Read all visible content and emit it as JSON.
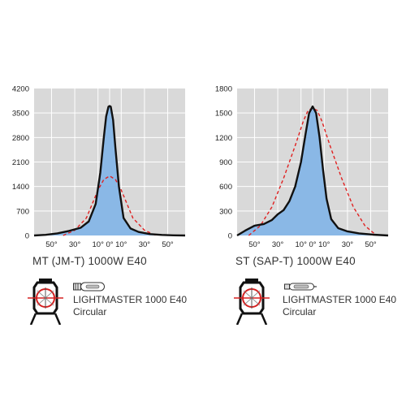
{
  "chart_data": [
    {
      "type": "line",
      "title": "MT (JM-T) 1000W E40",
      "yticks": [
        "4200",
        "3500",
        "2800",
        "2100",
        "1400",
        "700",
        "0"
      ],
      "ylim": [
        0,
        4200
      ],
      "xticks": [
        "50°",
        "30°",
        "10°",
        "0°",
        "10°",
        "30°",
        "50°"
      ],
      "xtick_angles": [
        -50,
        -30,
        -10,
        0,
        10,
        30,
        50
      ],
      "xlim": [
        -65,
        65
      ],
      "grid": true,
      "series": [
        {
          "style": "solid-black-filled-blue",
          "x": [
            -65,
            -55,
            -45,
            -35,
            -25,
            -18,
            -12,
            -8,
            -5,
            -3,
            -1,
            0,
            1,
            3,
            5,
            8,
            12,
            18,
            25,
            35,
            45,
            55,
            65
          ],
          "y": [
            0,
            20,
            60,
            130,
            220,
            400,
            900,
            1800,
            2800,
            3400,
            3680,
            3700,
            3680,
            3300,
            2500,
            1400,
            500,
            200,
            100,
            40,
            15,
            5,
            0
          ]
        },
        {
          "style": "dashed-red",
          "x": [
            -40,
            -30,
            -20,
            -15,
            -10,
            -5,
            0,
            5,
            10,
            15,
            20,
            30,
            40
          ],
          "y": [
            0,
            150,
            500,
            900,
            1300,
            1600,
            1700,
            1600,
            1300,
            900,
            500,
            150,
            0
          ]
        }
      ]
    },
    {
      "type": "line",
      "title": "ST (SAP-T) 1000W E40",
      "yticks": [
        "1800",
        "1500",
        "1200",
        "900",
        "600",
        "300",
        "0"
      ],
      "ylim": [
        0,
        1800
      ],
      "xticks": [
        "50°",
        "30°",
        "10°",
        "0°",
        "10°",
        "30°",
        "50°"
      ],
      "xtick_angles": [
        -50,
        -30,
        -10,
        0,
        10,
        30,
        50
      ],
      "xlim": [
        -65,
        65
      ],
      "grid": true,
      "series": [
        {
          "style": "solid-black-filled-blue",
          "x": [
            -65,
            -58,
            -50,
            -42,
            -35,
            -30,
            -25,
            -20,
            -15,
            -10,
            -6,
            -3,
            0,
            3,
            6,
            9,
            12,
            16,
            22,
            30,
            40,
            52,
            65
          ],
          "y": [
            0,
            60,
            120,
            140,
            190,
            260,
            310,
            420,
            600,
            900,
            1250,
            1500,
            1580,
            1500,
            1200,
            800,
            450,
            200,
            90,
            50,
            25,
            10,
            0
          ]
        },
        {
          "style": "dashed-red",
          "x": [
            -55,
            -45,
            -35,
            -25,
            -15,
            -8,
            -4,
            0,
            4,
            8,
            15,
            25,
            35,
            45,
            55
          ],
          "y": [
            0,
            120,
            350,
            700,
            1100,
            1400,
            1530,
            1560,
            1530,
            1400,
            1100,
            700,
            350,
            120,
            0
          ]
        }
      ]
    }
  ],
  "products": [
    {
      "name": "LIGHTMASTER 1000 E40",
      "shape": "Circular",
      "fixture_icon": "circular-floodlight-icon",
      "lamp_icon": "tubular-lamp-icon"
    },
    {
      "name": "LIGHTMASTER 1000 E40",
      "shape": "Circular",
      "fixture_icon": "circular-floodlight-icon",
      "lamp_icon": "tubular-lamp-icon"
    }
  ],
  "colors": {
    "plot_bg": "#d9d9d9",
    "grid": "#ffffff",
    "fill": "#8ab8e6",
    "curve": "#111111",
    "dashed": "#e02020",
    "fixture_ring": "#d62020"
  }
}
